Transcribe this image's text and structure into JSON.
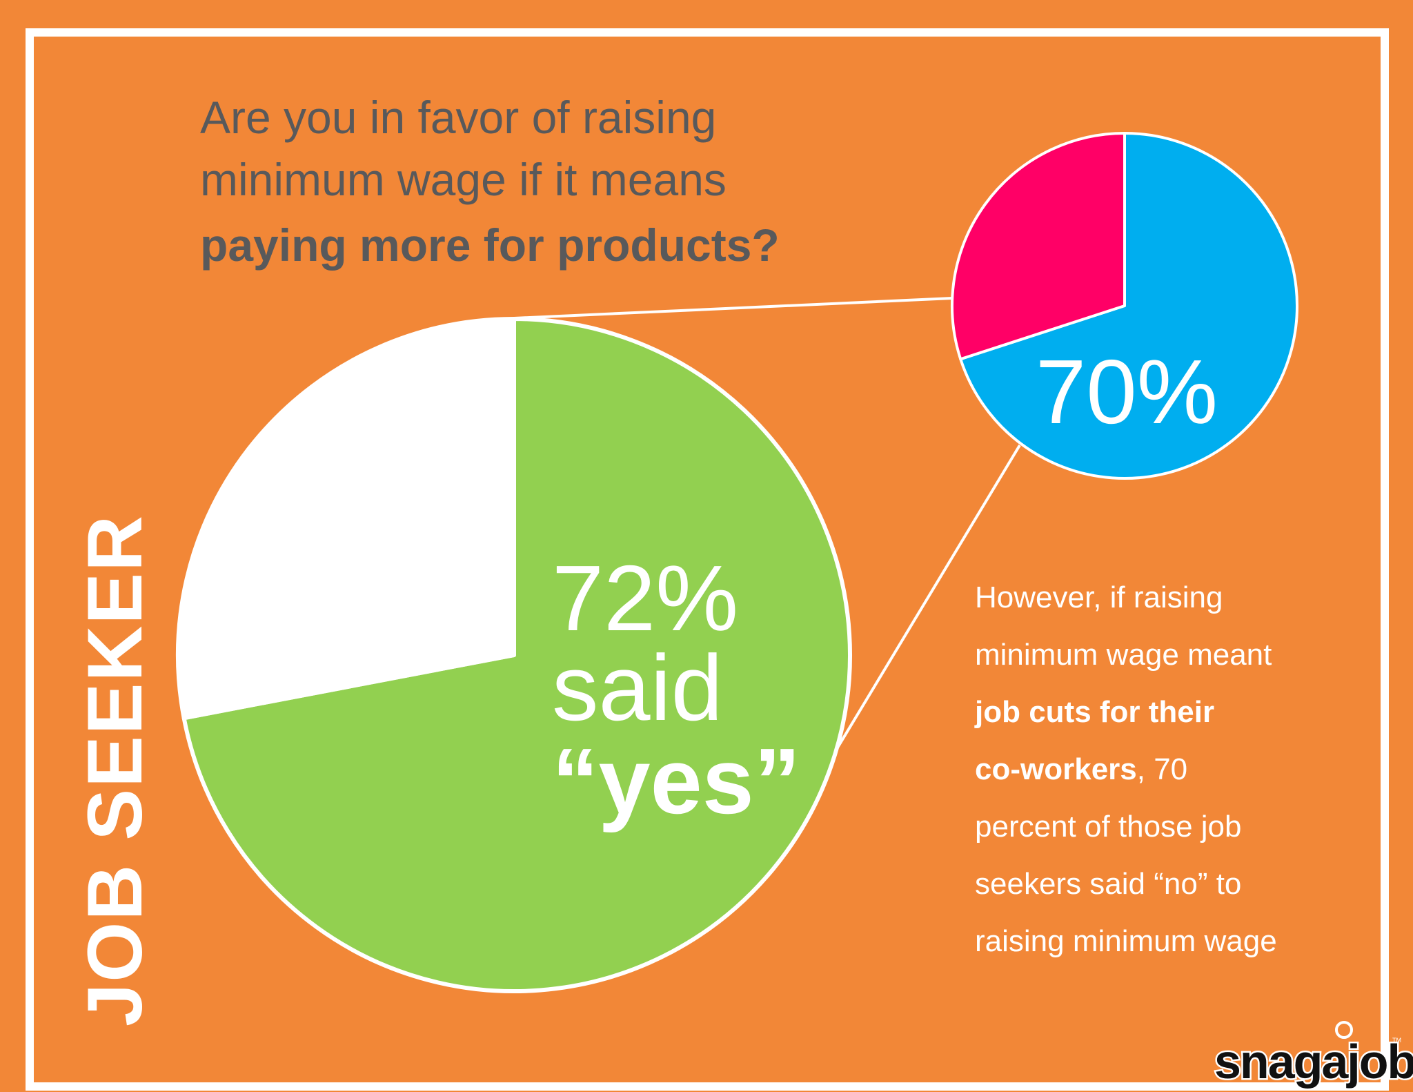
{
  "colors": {
    "background": "#F28737",
    "frame": "#FFFFFF",
    "text_dark": "#58595B",
    "green": "#92D050",
    "white": "#FFFFFF",
    "blue": "#00AEEF",
    "pink": "#FF0066"
  },
  "side_label": "JOB SEEKER",
  "question": {
    "line1": "Are you in favor of raising",
    "line2": "minimum wage if it means",
    "line3": "paying more for products?"
  },
  "main_pie_label": {
    "percent": "72%",
    "said": "said",
    "answer": "“yes”"
  },
  "zoom_pie_label": "70%",
  "note": {
    "line1": "However, if raising",
    "line2": "minimum wage meant",
    "line3": "job cuts for their",
    "line4_bold": "co-workers",
    "line4_rest": ", 70",
    "line5": "percent of those job",
    "line6": "seekers said “no” to",
    "line7": "raising minimum wage"
  },
  "logo": {
    "text": "snagajob",
    "tm": "TM"
  },
  "chart_data": [
    {
      "type": "pie",
      "values": [
        72,
        28
      ],
      "colors": [
        "#92D050",
        "#FFFFFF"
      ]
    },
    {
      "type": "pie",
      "values": [
        70,
        30
      ],
      "colors": [
        "#00AEEF",
        "#FF0066"
      ]
    }
  ]
}
